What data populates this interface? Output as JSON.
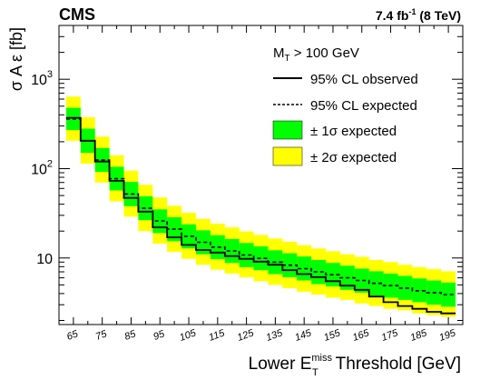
{
  "chart_data": {
    "type": "area",
    "experiment": "CMS",
    "luminosity_main": "7.4 fb",
    "luminosity_exp": "-1",
    "energy": " (8 TeV)",
    "xlabel_prefix": "Lower E",
    "xlabel_sup": "miss",
    "xlabel_sub": "T",
    "xlabel_suffix": " Threshold [GeV]",
    "ylabel": "σ A ε [fb]",
    "y_scale": "log",
    "ylim": [
      1.8,
      4000
    ],
    "xlim": [
      60,
      200
    ],
    "x_tick_labels": [
      "65",
      "75",
      "85",
      "95",
      "105",
      "115",
      "125",
      "135",
      "145",
      "155",
      "165",
      "175",
      "185",
      "195"
    ],
    "y_tick_labels": [
      {
        "value": 1000,
        "base": "10",
        "exp": "3"
      },
      {
        "value": 100,
        "base": "10",
        "exp": "2"
      },
      {
        "value": 10,
        "base": "10",
        "exp": ""
      }
    ],
    "legend_header": {
      "base": "M",
      "sub": "T",
      "rest": " > 100 GeV"
    },
    "legend_placement": "top-right",
    "colors": {
      "band1": "#00ff00",
      "band2": "#ffff00",
      "lines": "#000000"
    },
    "series": [
      {
        "name": "95% CL observed",
        "style": "solid"
      },
      {
        "name": "95% CL expected",
        "style": "dashed"
      },
      {
        "name": "± 1σ expected",
        "style": "band1"
      },
      {
        "name": "± 2σ expected",
        "style": "band2"
      }
    ],
    "x": [
      65,
      70,
      75,
      80,
      85,
      90,
      95,
      100,
      105,
      110,
      115,
      120,
      125,
      130,
      135,
      140,
      145,
      150,
      155,
      160,
      165,
      170,
      175,
      180,
      185,
      190,
      195
    ],
    "expected": [
      360,
      205,
      125,
      77,
      52,
      36,
      26,
      21,
      17.5,
      15,
      13.2,
      12,
      10.8,
      9.9,
      9,
      8.3,
      7.6,
      7,
      6.5,
      6,
      5.6,
      5.2,
      4.9,
      4.6,
      4.3,
      4.1,
      3.9
    ],
    "observed": [
      370,
      205,
      120,
      73,
      47,
      33,
      22,
      17,
      14,
      12.3,
      11.5,
      10.5,
      9.8,
      9.1,
      8.4,
      7.3,
      6.6,
      6.1,
      5.5,
      4.9,
      4.4,
      3.7,
      3.2,
      2.9,
      2.7,
      2.5,
      2.4
    ],
    "band1": [
      [
        270,
        480
      ],
      [
        150,
        280
      ],
      [
        92,
        170
      ],
      [
        57,
        105
      ],
      [
        38,
        71
      ],
      [
        26.5,
        49
      ],
      [
        19,
        35
      ],
      [
        15.4,
        28.6
      ],
      [
        12.8,
        23.8
      ],
      [
        11,
        20.4
      ],
      [
        9.7,
        18
      ],
      [
        8.8,
        16.3
      ],
      [
        7.9,
        14.7
      ],
      [
        7.3,
        13.5
      ],
      [
        6.6,
        12.2
      ],
      [
        6.1,
        11.3
      ],
      [
        5.6,
        10.4
      ],
      [
        5.1,
        9.5
      ],
      [
        4.8,
        8.8
      ],
      [
        4.4,
        8.2
      ],
      [
        4.1,
        7.6
      ],
      [
        3.8,
        7.1
      ],
      [
        3.6,
        6.7
      ],
      [
        3.4,
        6.3
      ],
      [
        3.2,
        5.9
      ],
      [
        3,
        5.6
      ],
      [
        2.85,
        5.3
      ]
    ],
    "band2": [
      [
        205,
        640
      ],
      [
        114,
        375
      ],
      [
        70,
        228
      ],
      [
        43,
        141
      ],
      [
        29,
        95
      ],
      [
        20,
        66
      ],
      [
        14.5,
        47.5
      ],
      [
        11.7,
        38.4
      ],
      [
        9.8,
        32
      ],
      [
        8.4,
        27.4
      ],
      [
        7.4,
        24.2
      ],
      [
        6.7,
        22
      ],
      [
        6.1,
        19.8
      ],
      [
        5.5,
        18.1
      ],
      [
        5,
        16.5
      ],
      [
        4.6,
        15.2
      ],
      [
        4.2,
        13.9
      ],
      [
        3.9,
        12.8
      ],
      [
        3.6,
        11.9
      ],
      [
        3.4,
        11
      ],
      [
        3.1,
        10.3
      ],
      [
        2.9,
        9.5
      ],
      [
        2.7,
        9
      ],
      [
        2.6,
        8.4
      ],
      [
        2.4,
        7.9
      ],
      [
        2.3,
        7.5
      ],
      [
        2.2,
        7.1
      ]
    ]
  }
}
